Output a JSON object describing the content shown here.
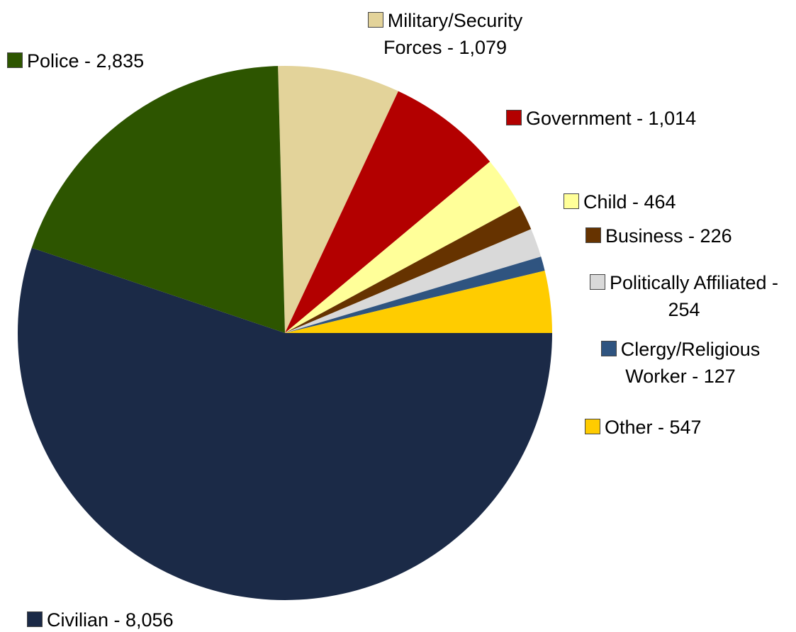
{
  "chart_data": {
    "type": "pie",
    "start_angle_deg": -1.5,
    "direction": "clockwise",
    "slices": [
      {
        "label": "Military/Security Forces - 1,079",
        "name": "Military/Security Forces",
        "value": 1079,
        "color": "#E3D39A"
      },
      {
        "label": "Government - 1,014",
        "name": "Government",
        "value": 1014,
        "color": "#B30000"
      },
      {
        "label": "Child - 464",
        "name": "Child",
        "value": 464,
        "color": "#FFFF99"
      },
      {
        "label": "Business - 226",
        "name": "Business",
        "value": 226,
        "color": "#663300"
      },
      {
        "label": "Politically Affiliated - 254",
        "name": "Politically Affiliated",
        "value": 254,
        "color": "#D9D9D9"
      },
      {
        "label": "Clergy/Religious Worker - 127",
        "name": "Clergy/Religious Worker",
        "value": 127,
        "color": "#2F5480"
      },
      {
        "label": "Other - 547",
        "name": "Other",
        "value": 547,
        "color": "#FFCC00"
      },
      {
        "label": "Civilian - 8,056",
        "name": "Civilian",
        "value": 8056,
        "color": "#1B2A47"
      },
      {
        "label": "Police - 2,835",
        "name": "Police",
        "value": 2835,
        "color": "#2D5500"
      }
    ],
    "legend": "labels positioned beside slices"
  }
}
